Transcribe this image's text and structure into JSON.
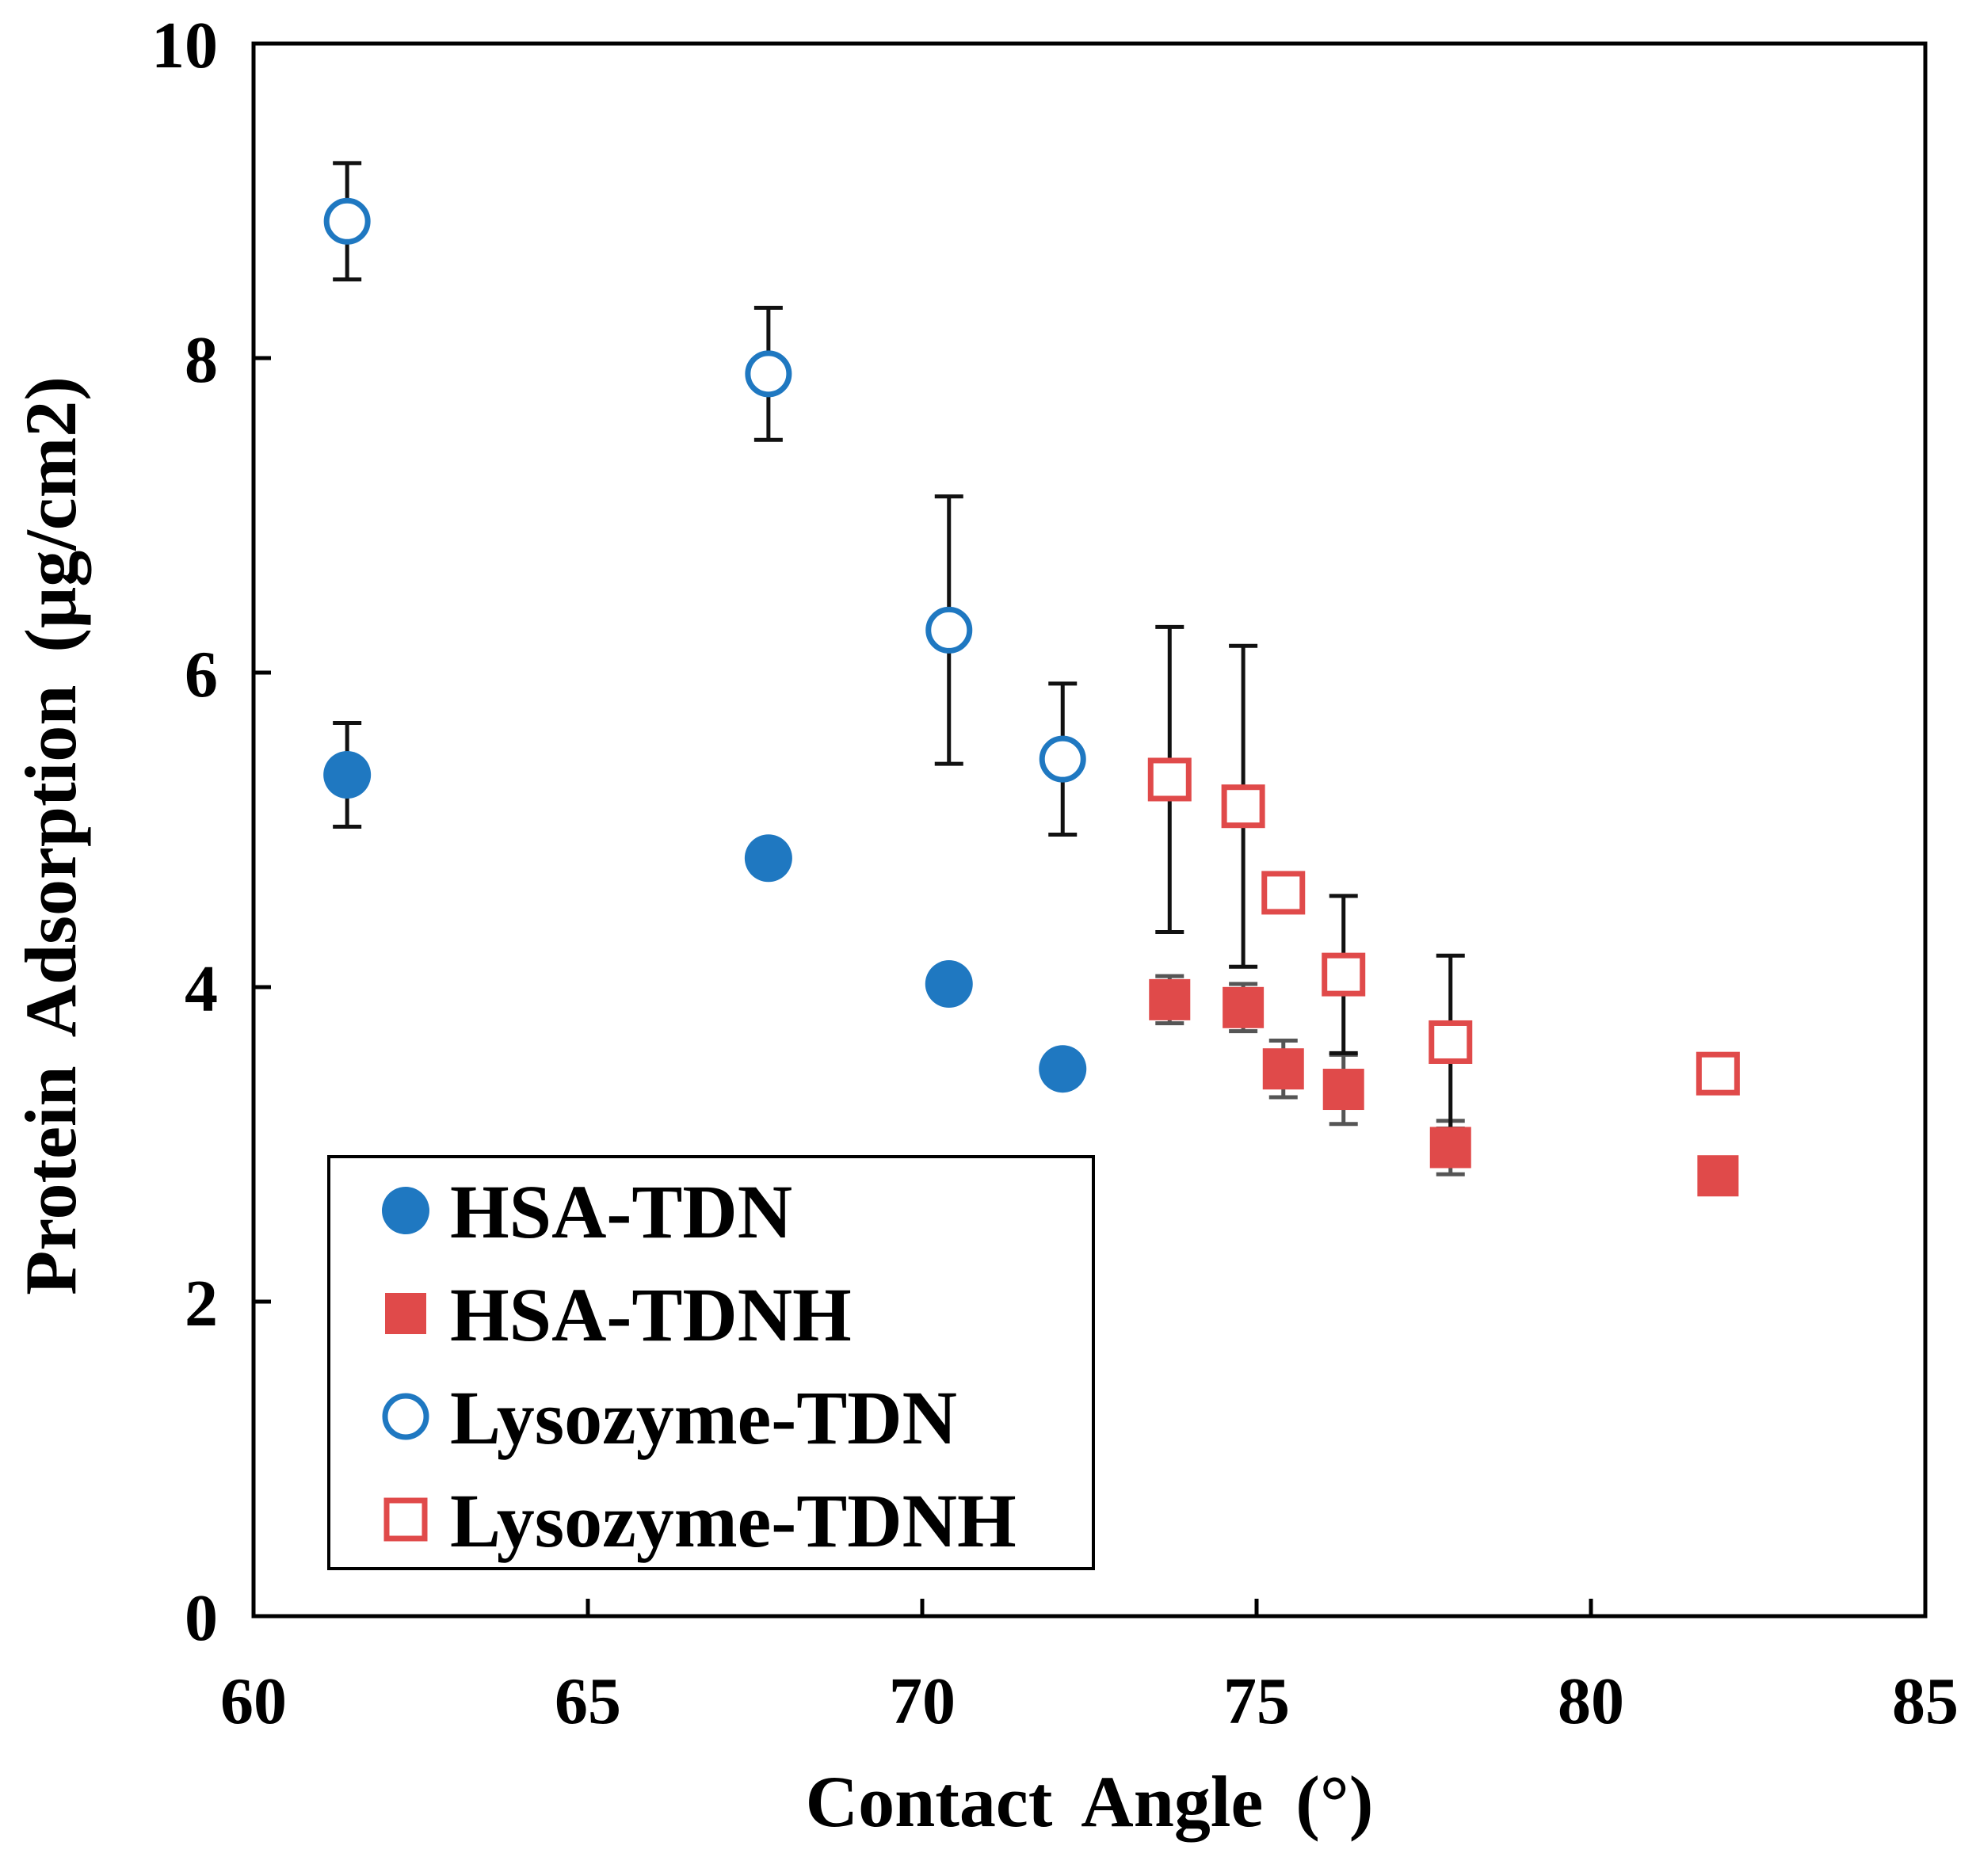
{
  "chart_data": {
    "type": "scatter",
    "title": "",
    "xlabel": "Contact Angle (°)",
    "ylabel": "Protein Adsorption (μg/cm2)",
    "xlim": [
      60,
      85
    ],
    "ylim": [
      0,
      10
    ],
    "xticks": [
      60,
      65,
      70,
      75,
      80,
      85
    ],
    "yticks": [
      0,
      2,
      4,
      6,
      8,
      10
    ],
    "grid": false,
    "legend_position": "bottom-left",
    "colors": {
      "blue": "#1f78c1",
      "red": "#e04a4a",
      "error_bar": "#111111",
      "error_bar_gray": "#555555"
    },
    "series": [
      {
        "name": "HSA-TDN",
        "marker": "circle",
        "filled": true,
        "color": "#1f78c1",
        "points": [
          {
            "x": 61.4,
            "y": 5.35,
            "err": 0.33
          },
          {
            "x": 67.7,
            "y": 4.82,
            "err": 0
          },
          {
            "x": 70.4,
            "y": 4.02,
            "err": 0.03
          },
          {
            "x": 72.1,
            "y": 3.48,
            "err": 0.1
          }
        ]
      },
      {
        "name": "HSA-TDNH",
        "marker": "square",
        "filled": true,
        "color": "#e04a4a",
        "points": [
          {
            "x": 73.7,
            "y": 3.92,
            "err": 0.15
          },
          {
            "x": 74.8,
            "y": 3.87,
            "err": 0.15
          },
          {
            "x": 75.4,
            "y": 3.48,
            "err": 0.18
          },
          {
            "x": 76.3,
            "y": 3.35,
            "err": 0.22
          },
          {
            "x": 77.9,
            "y": 2.98,
            "err": 0.17
          },
          {
            "x": 81.9,
            "y": 2.8,
            "err": 0
          }
        ]
      },
      {
        "name": "Lysozyme-TDN",
        "marker": "circle",
        "filled": false,
        "color": "#1f78c1",
        "points": [
          {
            "x": 61.4,
            "y": 8.87,
            "err": 0.37
          },
          {
            "x": 67.7,
            "y": 7.9,
            "err": 0.42
          },
          {
            "x": 70.4,
            "y": 6.27,
            "err": 0.85
          },
          {
            "x": 72.1,
            "y": 5.45,
            "err": 0.48
          }
        ]
      },
      {
        "name": "Lysozyme-TDNH",
        "marker": "square",
        "filled": false,
        "color": "#e04a4a",
        "points": [
          {
            "x": 73.7,
            "y": 5.32,
            "err": 0.97
          },
          {
            "x": 74.8,
            "y": 5.15,
            "err": 1.02
          },
          {
            "x": 75.4,
            "y": 4.6,
            "err": 0
          },
          {
            "x": 76.3,
            "y": 4.08,
            "err": 0.5
          },
          {
            "x": 77.9,
            "y": 3.65,
            "err": 0.55
          },
          {
            "x": 81.9,
            "y": 3.45,
            "err": 0
          }
        ]
      }
    ]
  }
}
